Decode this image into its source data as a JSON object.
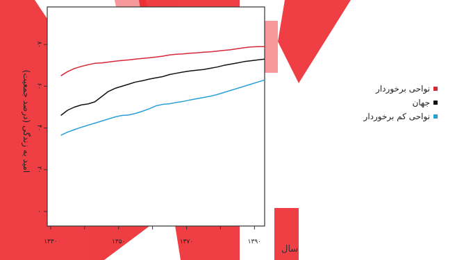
{
  "chart_data": {
    "type": "line",
    "xlabel": "سال",
    "ylabel": "امید به زندگی (درصد جمعیت)",
    "x_ticks": [
      1330,
      1340,
      1350,
      1360,
      1370,
      1380,
      1390
    ],
    "x_tick_labels": [
      "۱۳۳۰",
      "",
      "۱۳۵۰",
      "",
      "۱۳۷۰",
      "",
      "۱۳۹۰"
    ],
    "xlim": [
      1329,
      1393
    ],
    "y_ticks": [
      0,
      20,
      40,
      60,
      80
    ],
    "y_tick_labels": [
      "۰",
      "۲۰",
      "۴۰",
      "۶۰",
      "۸۰"
    ],
    "ylim": [
      -7,
      98
    ],
    "legend_position": "right",
    "grid": false,
    "x": [
      1333,
      1335,
      1337,
      1339,
      1341,
      1343,
      1345,
      1347,
      1349,
      1351,
      1353,
      1355,
      1357,
      1359,
      1361,
      1363,
      1365,
      1367,
      1369,
      1371,
      1373,
      1375,
      1377,
      1379,
      1381,
      1383,
      1385,
      1387,
      1389,
      1391,
      1393
    ],
    "series": [
      {
        "name": "نواحی برخوردار",
        "color": "#d62738",
        "values": [
          65,
          67,
          68.5,
          69.5,
          70.3,
          71,
          71.2,
          71.6,
          72,
          72.3,
          72.6,
          73,
          73.3,
          73.6,
          74,
          74.4,
          75,
          75.3,
          75.5,
          75.8,
          76,
          76.3,
          76.5,
          76.8,
          77.2,
          77.5,
          78,
          78.5,
          78.8,
          79,
          79
        ]
      },
      {
        "name": "جهان",
        "color": "#111111",
        "values": [
          46,
          48.5,
          50,
          51,
          51.5,
          52.5,
          55,
          57.5,
          59,
          60,
          61,
          62,
          62.6,
          63.4,
          64,
          64.6,
          65.6,
          66.2,
          66.8,
          67.3,
          67.7,
          68,
          68.6,
          69.2,
          70,
          70.6,
          71.2,
          71.8,
          72.2,
          72.6,
          73
        ]
      },
      {
        "name": "نواحی کم برخوردار",
        "color": "#2a9fd6",
        "values": [
          36.5,
          38,
          39.2,
          40.3,
          41.3,
          42.3,
          43.3,
          44.3,
          45.3,
          46,
          46.2,
          47,
          48,
          49.2,
          50.6,
          51.3,
          51.6,
          52.2,
          52.7,
          53.4,
          54,
          54.6,
          55.2,
          56,
          57,
          58,
          59,
          60,
          61,
          62,
          63
        ]
      }
    ]
  }
}
